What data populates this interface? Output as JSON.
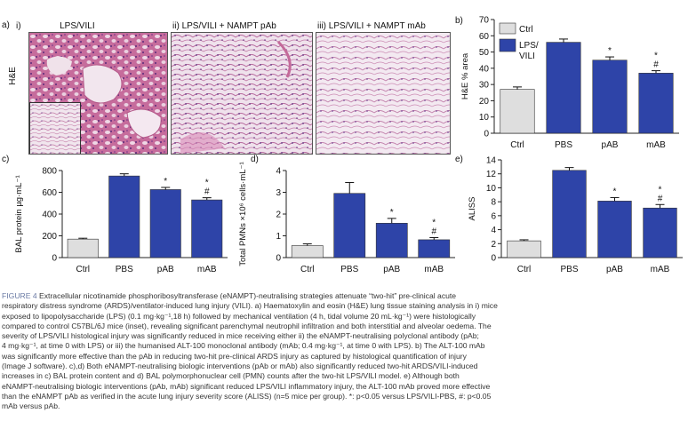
{
  "panel_a": {
    "label": "a)",
    "row_label": "H&E",
    "images": [
      {
        "roman": "i)",
        "title": "LPS/VILI"
      },
      {
        "roman": "ii)",
        "title": "LPS/VILI + NAMPT pAb"
      },
      {
        "roman": "iii)",
        "title": "LPS/VILI + NAMPT mAb"
      }
    ]
  },
  "colors": {
    "ctrl": "#dedede",
    "lps": "#2e44a8",
    "bar_stroke": "#333333"
  },
  "chart_data": [
    {
      "panel": "b)",
      "type": "bar",
      "categories": [
        "Ctrl",
        "PBS",
        "pAB",
        "mAB"
      ],
      "values": [
        27,
        56,
        45,
        37
      ],
      "errors": [
        1.5,
        2,
        2,
        1.5
      ],
      "annotations": [
        "",
        "",
        "*",
        "*\n#"
      ],
      "ylabel": "H&E % area",
      "ylim": [
        0,
        70
      ],
      "yticks": [
        0,
        10,
        20,
        30,
        40,
        50,
        60,
        70
      ],
      "legend": {
        "position": "top-left",
        "entries": [
          "Ctrl",
          "LPS/\nVILI"
        ]
      }
    },
    {
      "panel": "c)",
      "type": "bar",
      "categories": [
        "Ctrl",
        "PBS",
        "pAB",
        "mAB"
      ],
      "values": [
        170,
        750,
        625,
        530
      ],
      "errors": [
        8,
        20,
        20,
        20
      ],
      "annotations": [
        "",
        "",
        "*",
        "*\n#"
      ],
      "ylabel": "BAL protein µg·mL⁻¹",
      "ylim": [
        0,
        800
      ],
      "yticks": [
        0,
        200,
        400,
        600,
        800
      ]
    },
    {
      "panel": "d)",
      "type": "bar",
      "categories": [
        "Ctrl",
        "PBS",
        "pAB",
        "mAB"
      ],
      "values": [
        0.55,
        2.95,
        1.58,
        0.82
      ],
      "errors": [
        0.08,
        0.5,
        0.22,
        0.1
      ],
      "annotations": [
        "",
        "",
        "*",
        "*\n#"
      ],
      "ylabel": "Total PMNs ×10⁶ cells·mL⁻¹",
      "ylim": [
        0,
        4
      ],
      "yticks": [
        0,
        1,
        2,
        3,
        4
      ]
    },
    {
      "panel": "e)",
      "type": "bar",
      "categories": [
        "Ctrl",
        "PBS",
        "pAB",
        "mAB"
      ],
      "values": [
        2.4,
        12.5,
        8.1,
        7.1
      ],
      "errors": [
        0.15,
        0.4,
        0.5,
        0.5
      ],
      "annotations": [
        "",
        "",
        "*",
        "*\n#"
      ],
      "ylabel": "ALISS",
      "ylim": [
        0,
        14
      ],
      "yticks": [
        0,
        2,
        4,
        6,
        8,
        10,
        12,
        14
      ]
    }
  ],
  "caption": {
    "figure": "FIGURE 4",
    "lines": [
      "Extracellular nicotinamide phosphoribosyltransferase (eNAMPT)-neutralising strategies attenuate “two-hit” pre-clinical acute",
      "respiratory distress syndrome (ARDS)/ventilator-induced lung injury (VILI). a) Haematoxylin and eosin (H&E) lung tissue staining analysis in i) mice",
      "exposed to lipopolysaccharide (LPS) (0.1 mg·kg⁻¹,18 h) followed by mechanical ventilation (4 h, tidal volume 20 mL·kg⁻¹) were histologically",
      "compared to control C57BL/6J mice (inset), revealing significant parenchymal neutrophil infiltration and both interstitial and alveolar oedema. The",
      "severity of LPS/VILI histological injury was significantly reduced in mice receiving either ii) the eNAMPT-neutralising polyclonal antibody (pAb;",
      "4 mg·kg⁻¹, at time 0 with LPS) or iii) the humanised ALT-100 monoclonal antibody (mAb; 0.4 mg·kg⁻¹, at time 0 with LPS). b) The ALT-100 mAb",
      "was significantly more effective than the pAb in reducing two-hit pre-clinical ARDS injury as captured by histological quantification of injury",
      "(Image J software). c),d) Both eNAMPT-neutralising biologic interventions (pAb or mAb) also significantly reduced two-hit ARDS/VILI-induced",
      "increases in c) BAL protein content and d) BAL polymorphonuclear cell (PMN) counts after the two-hit LPS/VILI model. e) Although both",
      "eNAMPT-neutralising biologic interventions (pAb, mAb) significant reduced LPS/VILI inflammatory injury, the ALT-100 mAb proved more effective",
      "than the eNAMPT pAb as verified in the acute lung injury severity score (ALISS) (n=5 mice per group). *: p<0.05 versus LPS/VILI-PBS, #: p<0.05",
      "mAb versus pAb."
    ]
  }
}
